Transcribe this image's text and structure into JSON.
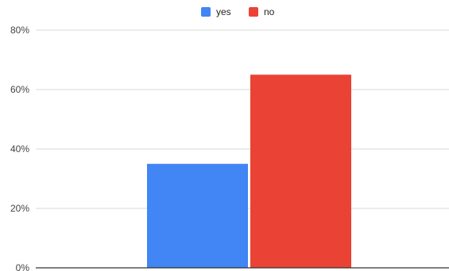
{
  "chart_data": {
    "type": "bar",
    "title": "",
    "xlabel": "",
    "ylabel": "",
    "categories": [
      ""
    ],
    "series": [
      {
        "name": "yes",
        "values": [
          35
        ],
        "color": "#4285F4"
      },
      {
        "name": "no",
        "values": [
          65
        ],
        "color": "#EA4335"
      }
    ],
    "ylim": [
      0,
      80
    ],
    "yticks": [
      0,
      20,
      40,
      60,
      80
    ],
    "ytick_labels": [
      "0%",
      "20%",
      "40%",
      "60%",
      "80%"
    ],
    "grid": true,
    "legend_position": "top-center",
    "gridline_color": "#d9d9d9",
    "axis_color": "#333333"
  }
}
